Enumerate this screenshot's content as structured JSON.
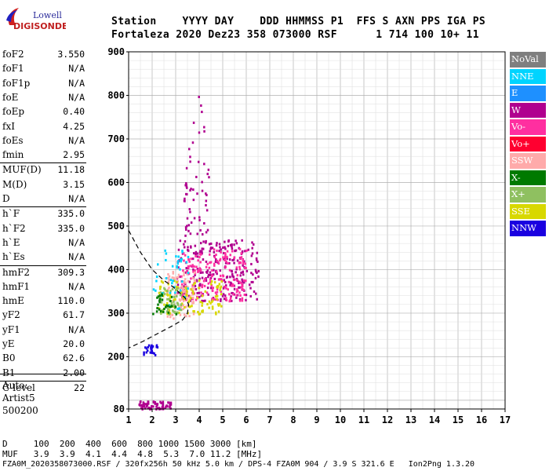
{
  "logo": {
    "line1": "Lowell",
    "line2": "DIGISONDE"
  },
  "header": {
    "row1": "Station    YYYY DAY    DDD HHMMSS P1  FFS S AXN PPS IGA PS",
    "row2": "Fortaleza 2020 Dez23 358 073000 RSF      1 714 100 10+ 11"
  },
  "params": [
    {
      "name": "foF2",
      "value": "3.550"
    },
    {
      "name": "foF1",
      "value": "N/A"
    },
    {
      "name": "foF1p",
      "value": "N/A"
    },
    {
      "name": "foE",
      "value": "N/A"
    },
    {
      "name": "foEp",
      "value": "0.40"
    },
    {
      "name": "fxI",
      "value": "4.25"
    },
    {
      "name": "foEs",
      "value": "N/A"
    },
    {
      "name": "fmin",
      "value": "2.95"
    },
    {
      "name": "MUF(D)",
      "value": "11.18"
    },
    {
      "name": "M(D)",
      "value": "3.15"
    },
    {
      "name": "D",
      "value": "N/A"
    },
    {
      "name": "h`F",
      "value": "335.0"
    },
    {
      "name": "h`F2",
      "value": "335.0"
    },
    {
      "name": "h`E",
      "value": "N/A"
    },
    {
      "name": "h`Es",
      "value": "N/A"
    },
    {
      "name": "hmF2",
      "value": "309.3"
    },
    {
      "name": "hmF1",
      "value": "N/A"
    },
    {
      "name": "hmE",
      "value": "110.0"
    },
    {
      "name": "yF2",
      "value": "61.7"
    },
    {
      "name": "yF1",
      "value": "N/A"
    },
    {
      "name": "yE",
      "value": "20.0"
    },
    {
      "name": "B0",
      "value": "62.6"
    },
    {
      "name": "B1",
      "value": "2.00"
    },
    {
      "name": "C-level",
      "value": "22"
    }
  ],
  "auto": {
    "line1": "Auto:",
    "line2": "Artist5",
    "line3": "500200"
  },
  "legend": [
    {
      "label": "NoVal",
      "color": "#7f7f7f"
    },
    {
      "label": "NNE",
      "color": "#00d4ff"
    },
    {
      "label": "E",
      "color": "#1e90ff"
    },
    {
      "label": "W",
      "color": "#b0008f"
    },
    {
      "label": "Vo-",
      "color": "#ff2fa0"
    },
    {
      "label": "Vo+",
      "color": "#ff0030"
    },
    {
      "label": "SSW",
      "color": "#ffaaaa"
    },
    {
      "label": "X-",
      "color": "#007a00"
    },
    {
      "label": "X+",
      "color": "#8fc060"
    },
    {
      "label": "SSE",
      "color": "#d8d800"
    },
    {
      "label": "NNW",
      "color": "#1a00e0"
    }
  ],
  "footer": {
    "d_row": "D     100  200  400  600  800 1000 1500 3000 [km]",
    "muf_row": "MUF   3.9  3.9  4.1  4.4  4.8  5.3  7.0 11.2 [MHz]",
    "file_row": "FZA0M_2020358073000.RSF / 320fx256h 50 kHz 5.0 km / DPS-4 FZA0M 904 / 3.9 S 321.6 E   Ion2Png 1.3.20"
  },
  "chart_data": {
    "type": "scatter",
    "xlim": [
      1,
      17
    ],
    "ylim": [
      80,
      900
    ],
    "x_ticks": [
      1,
      2,
      3,
      4,
      5,
      6,
      7,
      8,
      9,
      10,
      11,
      12,
      13,
      14,
      15,
      16,
      17
    ],
    "y_ticks": [
      80,
      200,
      300,
      400,
      500,
      600,
      700,
      800,
      900
    ],
    "grid": true,
    "clusters": [
      {
        "name": "F-trace W",
        "x_range": [
          3.0,
          6.5
        ],
        "y_range": [
          330,
          470
        ],
        "color": "#b0008f"
      },
      {
        "name": "F-trace Vo-",
        "x_range": [
          3.2,
          6.0
        ],
        "y_range": [
          330,
          450
        ],
        "color": "#ff2fa0"
      },
      {
        "name": "F-trace SSW",
        "x_range": [
          2.6,
          3.8
        ],
        "y_range": [
          290,
          400
        ],
        "color": "#ffaaaa"
      },
      {
        "name": "F-trace SSE",
        "x_range": [
          2.2,
          5.0
        ],
        "y_range": [
          300,
          380
        ],
        "color": "#d8d800"
      },
      {
        "name": "F-trace X+",
        "x_range": [
          2.2,
          3.2
        ],
        "y_range": [
          300,
          360
        ],
        "color": "#8fc060"
      },
      {
        "name": "F-trace NNE",
        "x_range": [
          2.0,
          3.5
        ],
        "y_range": [
          310,
          460
        ],
        "color": "#00d4ff"
      },
      {
        "name": "F-trace X-",
        "x_range": [
          2.0,
          3.0
        ],
        "y_range": [
          300,
          350
        ],
        "color": "#007a00"
      },
      {
        "name": "High echoes",
        "x_range": [
          3.3,
          4.4
        ],
        "y_range": [
          480,
          860
        ],
        "color": "#b0008f"
      },
      {
        "name": "E-region",
        "x_range": [
          1.4,
          2.8
        ],
        "y_range": [
          82,
          100
        ],
        "color": "#b0008f"
      },
      {
        "name": "Mid echoes",
        "x_range": [
          1.6,
          2.2
        ],
        "y_range": [
          205,
          230
        ],
        "color": "#1a00e0"
      }
    ],
    "profile": [
      [
        1.0,
        490
      ],
      [
        1.5,
        440
      ],
      [
        2.0,
        400
      ],
      [
        2.5,
        375
      ],
      [
        2.9,
        360
      ],
      [
        3.2,
        345
      ],
      [
        3.4,
        335
      ],
      [
        3.55,
        320
      ],
      [
        3.5,
        300
      ],
      [
        3.3,
        285
      ],
      [
        2.9,
        272
      ],
      [
        2.3,
        255
      ],
      [
        1.6,
        235
      ],
      [
        1.0,
        220
      ]
    ]
  }
}
